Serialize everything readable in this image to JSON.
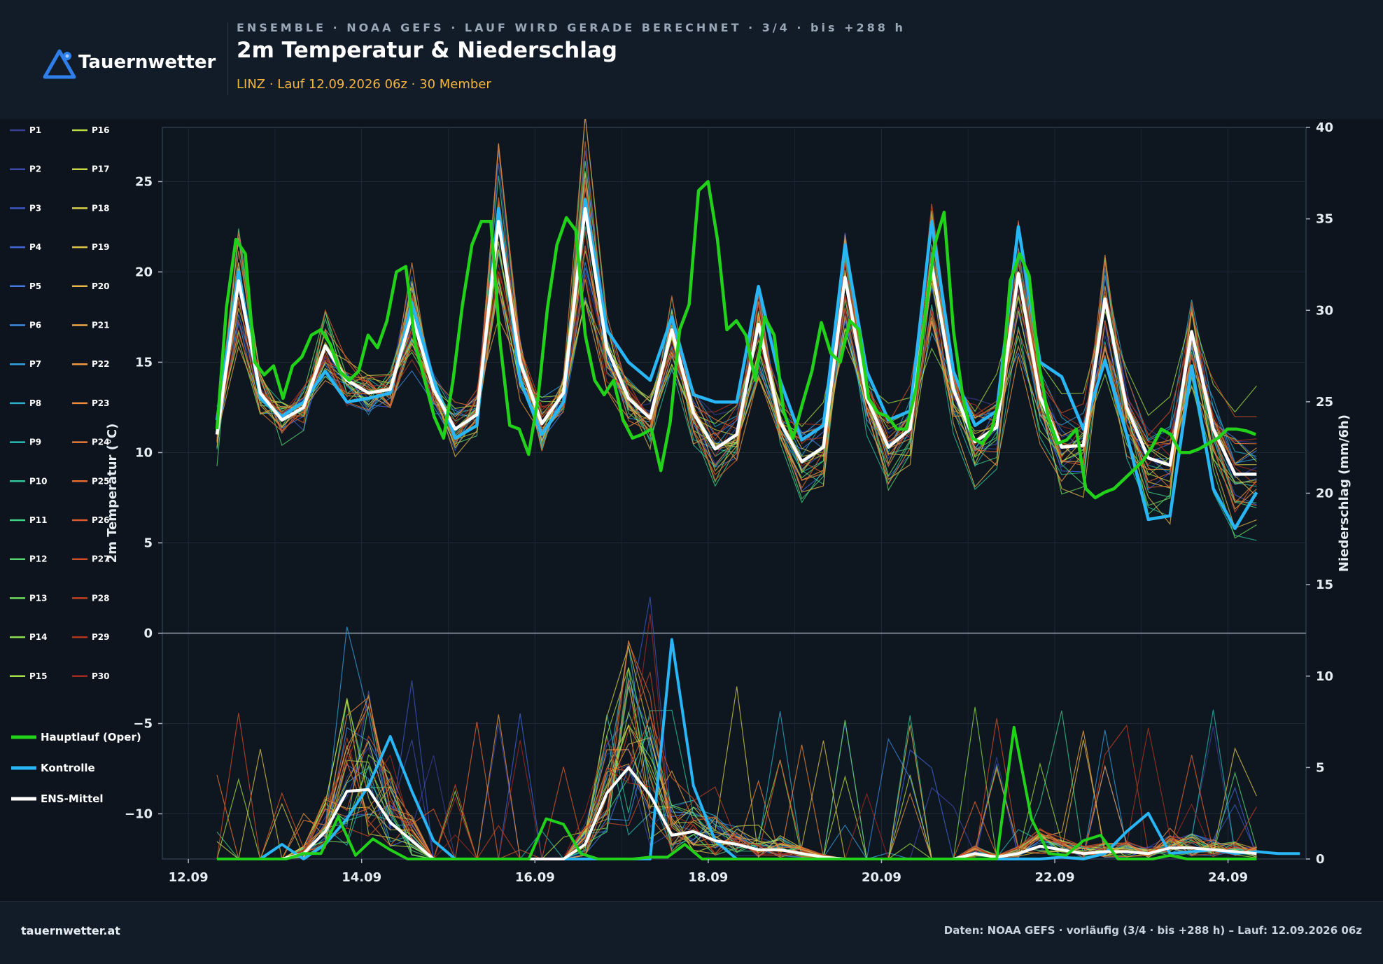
{
  "header": {
    "logo_text": "Tauernwetter",
    "kicker": "ENSEMBLE · NOAA GEFS · LAUF WIRD GERADE BERECHNET · 3/4 · bis +288 h",
    "title": "2m Temperatur & Niederschlag",
    "subtitle": "LINZ · Lauf 12.09.2026 06z · 30 Member"
  },
  "footer": {
    "left": "tauernwetter.at",
    "right": "Daten: NOAA GEFS · vorläufig (3/4 · bis +288 h) – Lauf: 12.09.2026 06z"
  },
  "colors": {
    "oper": "#22d11a",
    "control": "#29b6f6",
    "mean": "#ffffff",
    "background": "#0d141e",
    "header": "#121b28",
    "accent": "#f3b541"
  },
  "chart_data": {
    "type": "line",
    "ylabel": "2m Temperatur (°C)",
    "y2label": "Niederschlag (mm/6h)",
    "ylim": [
      -12.5,
      28
    ],
    "y2lim": [
      0,
      40
    ],
    "yticks": [
      -10,
      -5,
      0,
      5,
      10,
      15,
      20,
      25
    ],
    "y2ticks": [
      0,
      5,
      10,
      15,
      20,
      25,
      30,
      35,
      40
    ],
    "xlim": [
      11.7,
      24.9
    ],
    "xticks": [
      {
        "pos": 12,
        "label": "12.09"
      },
      {
        "pos": 14,
        "label": "14.09"
      },
      {
        "pos": 16,
        "label": "16.09"
      },
      {
        "pos": 18,
        "label": "18.09"
      },
      {
        "pos": 20,
        "label": "20.09"
      },
      {
        "pos": 22,
        "label": "22.09"
      },
      {
        "pos": 24,
        "label": "24.09"
      }
    ],
    "x_start_day": 12.33,
    "x_step_days": 0.125,
    "zero_line": 0,
    "members": [
      {
        "name": "P1",
        "color": "#3a3f96"
      },
      {
        "name": "P2",
        "color": "#3d4aae"
      },
      {
        "name": "P3",
        "color": "#3f57c4"
      },
      {
        "name": "P4",
        "color": "#4267d6"
      },
      {
        "name": "P5",
        "color": "#4479e0"
      },
      {
        "name": "P6",
        "color": "#3f8be2"
      },
      {
        "name": "P7",
        "color": "#34a0dd"
      },
      {
        "name": "P8",
        "color": "#2bafc9"
      },
      {
        "name": "P9",
        "color": "#27bcb1"
      },
      {
        "name": "P10",
        "color": "#2ec69a"
      },
      {
        "name": "P11",
        "color": "#3fcf86"
      },
      {
        "name": "P12",
        "color": "#55d572"
      },
      {
        "name": "P13",
        "color": "#6fdb5f"
      },
      {
        "name": "P14",
        "color": "#8ade4f"
      },
      {
        "name": "P15",
        "color": "#a3df46"
      },
      {
        "name": "P16",
        "color": "#b8dd43"
      },
      {
        "name": "P17",
        "color": "#c8d845"
      },
      {
        "name": "P18",
        "color": "#d5d047"
      },
      {
        "name": "P19",
        "color": "#dfc54a"
      },
      {
        "name": "P20",
        "color": "#e6b84b"
      },
      {
        "name": "P21",
        "color": "#eaa948"
      },
      {
        "name": "P22",
        "color": "#ec9a43"
      },
      {
        "name": "P23",
        "color": "#ec8a3d"
      },
      {
        "name": "P24",
        "color": "#ea7a36"
      },
      {
        "name": "P25",
        "color": "#e56a30"
      },
      {
        "name": "P26",
        "color": "#dd5b2a"
      },
      {
        "name": "P27",
        "color": "#d14d25"
      },
      {
        "name": "P28",
        "color": "#c34021"
      },
      {
        "name": "P29",
        "color": "#b3351f"
      },
      {
        "name": "P30",
        "color": "#a12c1e"
      }
    ],
    "temp_mean": [
      11.0,
      19.5,
      13.3,
      11.8,
      12.5,
      15.9,
      14.0,
      13.3,
      13.5,
      17.6,
      13.5,
      11.3,
      12.1,
      22.8,
      15.0,
      11.6,
      13.3,
      23.5,
      15.8,
      13.0,
      11.9,
      16.8,
      12.2,
      10.2,
      11.0,
      17.1,
      11.7,
      9.5,
      10.3,
      19.7,
      13.0,
      10.3,
      11.3,
      20.4,
      13.5,
      10.6,
      11.4,
      19.9,
      13.1,
      10.3,
      10.4,
      18.5,
      12.5,
      9.7,
      9.3,
      16.7,
      11.3,
      8.8,
      8.8
    ],
    "temp_control": [
      11.8,
      20.0,
      13.0,
      12.0,
      12.8,
      14.5,
      12.8,
      13.0,
      13.3,
      18.3,
      14.0,
      10.8,
      11.5,
      23.5,
      14.0,
      11.0,
      12.8,
      24.0,
      16.8,
      15.0,
      14.0,
      17.5,
      13.2,
      12.8,
      12.8,
      19.2,
      14.0,
      10.7,
      11.5,
      21.5,
      14.5,
      11.8,
      12.3,
      22.8,
      14.5,
      11.5,
      12.3,
      22.5,
      15.0,
      14.2,
      11.3,
      15.1,
      11.0,
      6.3,
      6.5,
      14.8,
      8.0,
      5.8,
      7.8
    ],
    "temp_oper": [
      11.3,
      18.0,
      21.8,
      21.0,
      15.0,
      14.3,
      14.8,
      13.0,
      14.8,
      15.3,
      16.5,
      16.8,
      16.0,
      14.5,
      14.0,
      14.5,
      16.5,
      15.8,
      17.3,
      20.0,
      20.3,
      16.0,
      14.0,
      12.0,
      10.8,
      14.0,
      18.2,
      21.5,
      22.8,
      22.8,
      16.0,
      11.5,
      11.3,
      9.9,
      13.0,
      18.0,
      21.5,
      23.0,
      22.3,
      16.5,
      14.0,
      13.2,
      14.0,
      11.8,
      10.8,
      11.0,
      11.3,
      9.0,
      11.7,
      16.8,
      18.2,
      24.5,
      25.0,
      21.8,
      16.8,
      17.3,
      16.5,
      14.0,
      17.5,
      16.5,
      12.3,
      10.8,
      12.7,
      14.5,
      17.2,
      15.5,
      15.0,
      17.3,
      16.8,
      13.0,
      12.2,
      12.0,
      11.3,
      11.3,
      13.5,
      17.7,
      21.5,
      23.3,
      16.7,
      13.0,
      10.8,
      10.5,
      11.2,
      13.3,
      19.5,
      21.0,
      19.8,
      15.0,
      12.0,
      10.5,
      10.7,
      11.3,
      8.0,
      7.5,
      7.8,
      8.0,
      8.5,
      9.0,
      9.5,
      10.3,
      11.3,
      11.0,
      10.0,
      10.0,
      10.2,
      10.5,
      10.8,
      11.3,
      11.3,
      11.2,
      11.0
    ],
    "precip_mean": [
      0,
      0,
      0,
      0,
      0.3,
      1.5,
      3.7,
      3.8,
      2.0,
      1.0,
      0,
      0,
      0,
      0,
      0,
      0,
      0,
      0.8,
      3.6,
      5.0,
      3.5,
      1.3,
      1.5,
      1.0,
      0.8,
      0.5,
      0.5,
      0.3,
      0.1,
      0,
      0,
      0,
      0,
      0,
      0,
      0.3,
      0.1,
      0.3,
      0.7,
      0.5,
      0.3,
      0.4,
      0.4,
      0.3,
      0.6,
      0.6,
      0.5,
      0.4,
      0.3
    ],
    "precip_control": [
      0,
      0,
      0,
      0.8,
      0,
      0.8,
      2.2,
      4.0,
      6.7,
      3.7,
      1.0,
      0,
      0,
      0,
      0,
      0,
      0,
      0,
      0,
      0,
      0,
      12.0,
      4.0,
      1.0,
      0,
      0,
      0,
      0,
      0,
      0,
      0,
      0,
      0,
      0,
      0,
      0,
      0,
      0,
      0,
      0.1,
      0,
      0.3,
      1.5,
      2.5,
      0.3,
      0.4,
      0.5,
      0.3,
      0.4,
      0.3,
      0.3
    ],
    "precip_oper": [
      0,
      0,
      0,
      0,
      0,
      0.3,
      0.3,
      2.3,
      0.2,
      1.1,
      0.5,
      0,
      0,
      0,
      0,
      0,
      0,
      0,
      0,
      2.2,
      1.9,
      0.3,
      0,
      0,
      0,
      0.1,
      0.1,
      0.8,
      0,
      0,
      0,
      0,
      0,
      0,
      0,
      0,
      0,
      0,
      0,
      0,
      0,
      0,
      0,
      0,
      0,
      0,
      7.2,
      2.2,
      0.3,
      0.2,
      1.0,
      1.3,
      0,
      0,
      0,
      0.2,
      0,
      0,
      0,
      0,
      0
    ]
  },
  "legend": {
    "oper": "Hauptlauf (Oper)",
    "control": "Kontrolle",
    "mean": "ENS-Mittel"
  }
}
